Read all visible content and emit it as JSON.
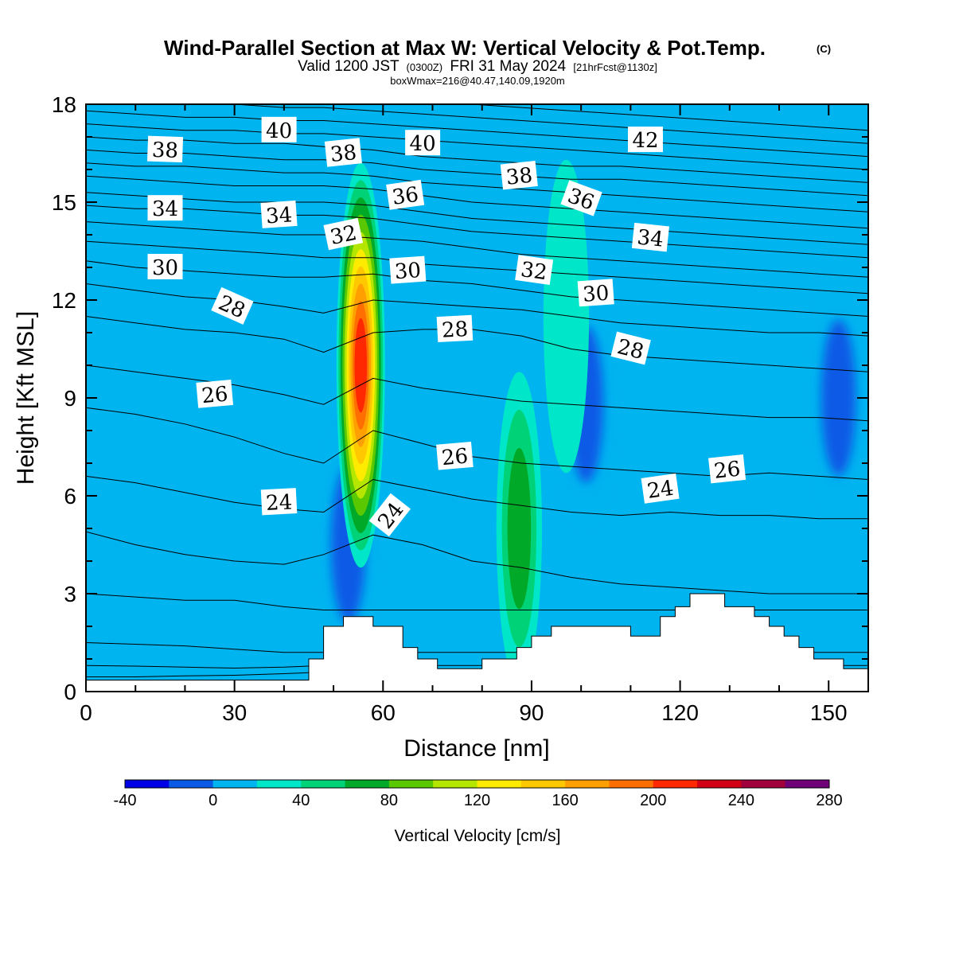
{
  "title": {
    "main": "Wind-Parallel Section at Max W: Vertical Velocity & Pot.Temp.",
    "copyright": "(C)",
    "valid_a": "Valid 1200 JST",
    "valid_z": "(0300Z)",
    "valid_b": "FRI 31 May 2024",
    "fcst": "[21hrFcst@1130z]",
    "box": "boxWmax=216@40.47,140.09,1920m"
  },
  "chart_data": {
    "type": "heatmap",
    "xlabel": "Distance [nm]",
    "ylabel": "Height [Kft MSL]",
    "xlim": [
      0,
      158
    ],
    "ylim": [
      0,
      18
    ],
    "x_ticks": [
      "0",
      "30",
      "60",
      "90",
      "120",
      "150"
    ],
    "y_ticks": [
      "0",
      "3",
      "6",
      "9",
      "12",
      "15",
      "18"
    ],
    "colorbar": {
      "label": "Vertical Velocity [cm/s]",
      "tick_labels": [
        "-40",
        "0",
        "40",
        "80",
        "120",
        "160",
        "200",
        "240",
        "280"
      ],
      "levels": [
        -40,
        -20,
        0,
        20,
        40,
        60,
        80,
        100,
        120,
        140,
        160,
        180,
        200,
        220,
        240,
        260,
        280
      ],
      "colors": [
        "#0000e6",
        "#0a5ae6",
        "#00b4f0",
        "#00e6c8",
        "#00d278",
        "#00aa28",
        "#5ac800",
        "#b4e600",
        "#ffeb00",
        "#ffc800",
        "#ffa000",
        "#ff6e00",
        "#ff2800",
        "#d20014",
        "#a0003c",
        "#6e0078"
      ]
    },
    "background_color": "#00b4f0",
    "updraft_cores": [
      {
        "x": 55.5,
        "z": 10.0,
        "w": 216
      },
      {
        "x": 87.5,
        "z": 5.0,
        "w": 70
      },
      {
        "x": 97,
        "z": 11.5,
        "w": 28
      }
    ],
    "downdraft_cores": [
      {
        "x": 101,
        "z": 8.8,
        "w": -30
      },
      {
        "x": 152,
        "z": 9.0,
        "w": -30
      },
      {
        "x": 53,
        "z": 4.5,
        "w": -25
      }
    ],
    "terrain": {
      "x": [
        0,
        45,
        45,
        48,
        48,
        52,
        52,
        55,
        55,
        58,
        58,
        64,
        64,
        67,
        67,
        71,
        71,
        74,
        74,
        80,
        80,
        84,
        84,
        87,
        87,
        90,
        90,
        94,
        94,
        100,
        100,
        110,
        110,
        116,
        116,
        119,
        119,
        122,
        122,
        125,
        125,
        129,
        129,
        135,
        135,
        138,
        138,
        141,
        141,
        144,
        144,
        147,
        147,
        150,
        150,
        153,
        153,
        155,
        155,
        158
      ],
      "z": [
        0.35,
        0.35,
        1.0,
        1.0,
        2.0,
        2.0,
        2.3,
        2.3,
        2.3,
        2.3,
        2.0,
        2.0,
        1.35,
        1.35,
        1.0,
        1.0,
        0.7,
        0.7,
        0.7,
        0.7,
        1.0,
        1.0,
        1.0,
        1.0,
        1.35,
        1.35,
        1.7,
        1.7,
        2.0,
        2.0,
        2.0,
        2.0,
        1.7,
        1.7,
        2.3,
        2.3,
        2.6,
        2.6,
        3.0,
        3.0,
        3.0,
        3.0,
        2.6,
        2.6,
        2.3,
        2.3,
        2.0,
        2.0,
        1.7,
        1.7,
        1.35,
        1.35,
        1.0,
        1.0,
        1.0,
        1.0,
        0.7,
        0.7,
        0.7,
        0.7
      ]
    },
    "theta_isentropes": [
      {
        "theta": 22,
        "z": [
          0.45,
          0.45,
          0.48,
          0.5,
          0.55,
          0.6,
          0.6,
          0.6,
          0.6,
          0.6,
          0.6,
          0.6,
          0.6,
          0.6,
          0.6,
          0.6,
          0.6
        ]
      },
      {
        "theta": 22.5,
        "z": [
          0.8,
          0.78,
          0.75,
          0.72,
          0.75,
          0.8,
          0.8,
          0.8,
          0.8,
          0.8,
          0.8,
          0.8,
          0.8,
          0.8,
          0.8,
          0.8,
          0.8
        ]
      },
      {
        "theta": 23,
        "z": [
          1.5,
          1.45,
          1.4,
          1.3,
          1.2,
          1.2,
          1.2,
          1.2,
          1.2,
          1.2,
          1.2,
          1.2,
          1.2,
          1.2,
          1.2,
          1.2,
          1.2
        ]
      },
      {
        "theta": 23.5,
        "z": [
          3.0,
          2.9,
          2.8,
          2.8,
          2.6,
          2.5,
          2.5,
          2.5,
          2.5,
          2.5,
          2.5,
          2.5,
          2.5,
          2.5,
          2.5,
          2.5,
          2.5
        ]
      },
      {
        "theta": 24,
        "z": [
          4.9,
          4.5,
          4.2,
          4.0,
          3.9,
          4.2,
          4.8,
          4.5,
          4.0,
          3.8,
          3.5,
          3.3,
          3.2,
          3.1,
          3.0,
          3.0,
          3.0
        ]
      },
      {
        "theta": 25,
        "z": [
          6.6,
          6.4,
          6.1,
          5.8,
          5.6,
          5.5,
          6.5,
          6.2,
          5.9,
          5.7,
          5.5,
          5.4,
          5.5,
          5.4,
          5.4,
          5.3,
          5.3
        ]
      },
      {
        "theta": 26,
        "z": [
          8.7,
          8.5,
          8.2,
          7.8,
          7.3,
          7.0,
          8.0,
          7.6,
          7.2,
          7.0,
          6.9,
          6.8,
          6.7,
          6.6,
          6.7,
          6.6,
          6.5
        ]
      },
      {
        "theta": 27,
        "z": [
          10.0,
          9.8,
          9.6,
          9.4,
          9.1,
          8.8,
          9.6,
          9.3,
          9.1,
          8.9,
          8.8,
          8.7,
          8.6,
          8.5,
          8.4,
          8.4,
          8.3
        ]
      },
      {
        "theta": 28,
        "z": [
          11.5,
          11.3,
          11.1,
          11.0,
          10.8,
          10.4,
          11.0,
          11.1,
          11.1,
          10.9,
          10.5,
          10.3,
          10.2,
          10.1,
          10.0,
          9.9,
          9.8
        ]
      },
      {
        "theta": 29,
        "z": [
          12.5,
          12.3,
          12.1,
          12.0,
          11.8,
          11.6,
          12.0,
          11.9,
          11.8,
          11.7,
          11.5,
          11.3,
          11.2,
          11.1,
          11.0,
          11.0,
          10.9
        ]
      },
      {
        "theta": 30,
        "z": [
          13.2,
          13.0,
          12.9,
          12.8,
          12.7,
          12.7,
          12.8,
          12.6,
          12.5,
          12.3,
          12.1,
          12.0,
          11.9,
          11.8,
          11.7,
          11.6,
          11.5
        ]
      },
      {
        "theta": 31,
        "z": [
          13.8,
          13.7,
          13.6,
          13.5,
          13.4,
          13.3,
          13.3,
          13.1,
          13.0,
          12.9,
          12.8,
          12.7,
          12.6,
          12.5,
          12.4,
          12.3,
          12.2
        ]
      },
      {
        "theta": 32,
        "z": [
          14.4,
          14.3,
          14.2,
          14.1,
          14.0,
          14.0,
          13.9,
          13.8,
          13.6,
          13.4,
          13.3,
          13.2,
          13.1,
          13.0,
          12.9,
          12.8,
          12.7
        ]
      },
      {
        "theta": 33,
        "z": [
          14.9,
          14.8,
          14.8,
          14.7,
          14.6,
          14.6,
          14.5,
          14.3,
          14.1,
          14.0,
          13.9,
          13.8,
          13.7,
          13.6,
          13.5,
          13.4,
          13.3
        ]
      },
      {
        "theta": 34,
        "z": [
          15.3,
          15.2,
          15.1,
          15.0,
          15.0,
          15.0,
          14.9,
          14.7,
          14.5,
          14.4,
          14.3,
          14.2,
          14.1,
          14.0,
          13.9,
          13.8,
          13.7
        ]
      },
      {
        "theta": 35,
        "z": [
          15.8,
          15.7,
          15.6,
          15.5,
          15.5,
          15.5,
          15.4,
          15.2,
          15.0,
          14.9,
          14.8,
          14.7,
          14.6,
          14.5,
          14.4,
          14.3,
          14.2
        ]
      },
      {
        "theta": 36,
        "z": [
          16.2,
          16.1,
          16.1,
          16.0,
          15.9,
          15.9,
          15.8,
          15.6,
          15.5,
          15.4,
          15.3,
          15.2,
          15.1,
          15.0,
          14.9,
          14.8,
          14.7
        ]
      },
      {
        "theta": 37,
        "z": [
          16.6,
          16.5,
          16.5,
          16.4,
          16.3,
          16.3,
          16.2,
          16.0,
          15.9,
          15.8,
          15.7,
          15.7,
          15.6,
          15.5,
          15.4,
          15.3,
          15.2
        ]
      },
      {
        "theta": 38,
        "z": [
          17.0,
          16.9,
          16.9,
          16.8,
          16.8,
          16.7,
          16.6,
          16.4,
          16.3,
          16.2,
          16.1,
          16.1,
          16.0,
          15.9,
          15.8,
          15.7,
          15.6
        ]
      },
      {
        "theta": 39,
        "z": [
          17.4,
          17.3,
          17.2,
          17.2,
          17.1,
          17.1,
          17.0,
          16.9,
          16.8,
          16.7,
          16.6,
          16.5,
          16.4,
          16.3,
          16.2,
          16.1,
          16.0
        ]
      },
      {
        "theta": 40,
        "z": [
          17.8,
          17.7,
          17.6,
          17.6,
          17.5,
          17.5,
          17.4,
          17.3,
          17.2,
          17.1,
          17.0,
          16.9,
          16.8,
          16.7,
          16.6,
          16.5,
          16.4
        ]
      },
      {
        "theta": 41,
        "z": [
          18.3,
          18.2,
          18.1,
          18.0,
          17.9,
          17.9,
          17.8,
          17.7,
          17.6,
          17.5,
          17.4,
          17.3,
          17.2,
          17.1,
          17.0,
          16.9,
          16.8
        ]
      },
      {
        "theta": 42,
        "z": [
          18.8,
          18.7,
          18.6,
          18.5,
          18.4,
          18.3,
          18.2,
          18.1,
          18.0,
          17.9,
          17.8,
          17.7,
          17.6,
          17.5,
          17.4,
          17.3,
          17.2
        ]
      }
    ],
    "isentrope_x": [
      0,
      10,
      20,
      30,
      40,
      48,
      58,
      68,
      78,
      88,
      98,
      108,
      118,
      128,
      138,
      148,
      158
    ],
    "contour_labels": [
      {
        "text": "38",
        "x": 16,
        "z": 16.6,
        "angle": 2
      },
      {
        "text": "40",
        "x": 39,
        "z": 17.2,
        "angle": 0
      },
      {
        "text": "38",
        "x": 52,
        "z": 16.5,
        "angle": -6
      },
      {
        "text": "40",
        "x": 68,
        "z": 16.8,
        "angle": 0
      },
      {
        "text": "42",
        "x": 113,
        "z": 16.9,
        "angle": 0
      },
      {
        "text": "36",
        "x": 64.5,
        "z": 15.2,
        "angle": -8
      },
      {
        "text": "38",
        "x": 87.5,
        "z": 15.8,
        "angle": -6
      },
      {
        "text": "36",
        "x": 100,
        "z": 15.1,
        "angle": 20
      },
      {
        "text": "34",
        "x": 16,
        "z": 14.8,
        "angle": 0
      },
      {
        "text": "34",
        "x": 39,
        "z": 14.6,
        "angle": -4
      },
      {
        "text": "32",
        "x": 52,
        "z": 14.0,
        "angle": -12
      },
      {
        "text": "34",
        "x": 114,
        "z": 13.9,
        "angle": 6
      },
      {
        "text": "30",
        "x": 16,
        "z": 13.0,
        "angle": 0
      },
      {
        "text": "30",
        "x": 65,
        "z": 12.9,
        "angle": -4
      },
      {
        "text": "32",
        "x": 90.5,
        "z": 12.9,
        "angle": 8
      },
      {
        "text": "30",
        "x": 103,
        "z": 12.2,
        "angle": -4
      },
      {
        "text": "28",
        "x": 29.5,
        "z": 11.8,
        "angle": 24
      },
      {
        "text": "28",
        "x": 74.5,
        "z": 11.1,
        "angle": -3
      },
      {
        "text": "28",
        "x": 110,
        "z": 10.5,
        "angle": 14
      },
      {
        "text": "26",
        "x": 26,
        "z": 9.1,
        "angle": -5
      },
      {
        "text": "26",
        "x": 74.5,
        "z": 7.2,
        "angle": -5
      },
      {
        "text": "26",
        "x": 129.5,
        "z": 6.8,
        "angle": -6
      },
      {
        "text": "24",
        "x": 39,
        "z": 5.8,
        "angle": -3
      },
      {
        "text": "24",
        "x": 61.5,
        "z": 5.4,
        "angle": -52
      },
      {
        "text": "24",
        "x": 116,
        "z": 6.2,
        "angle": -8
      }
    ]
  }
}
